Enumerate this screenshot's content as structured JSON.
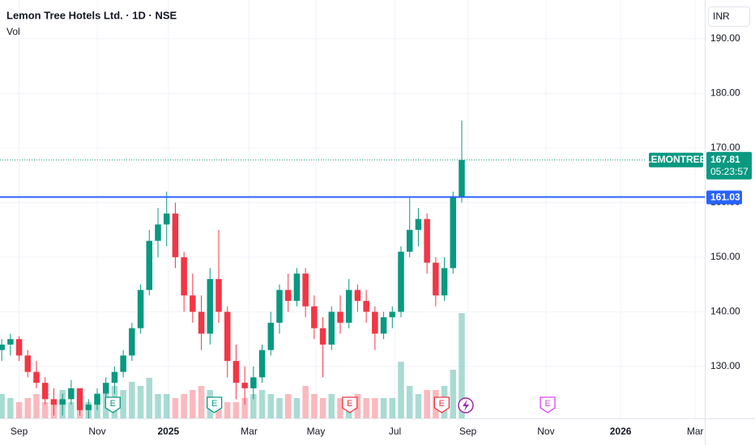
{
  "chart_data": {
    "type": "candlestick",
    "title": "Lemon Tree Hotels Ltd. · 1D · NSE",
    "volume_label": "Vol",
    "currency": "INR",
    "symbol": "LEMONTREE",
    "last_price": 167.81,
    "countdown": "05:23:57",
    "level": 161.03,
    "up_color": "#089981",
    "down_color": "#f23645",
    "level_color": "#2962ff",
    "x": [
      -2,
      -1,
      0,
      1,
      2,
      3,
      4,
      5,
      6,
      7,
      8,
      9,
      10,
      11,
      12,
      13,
      14,
      15,
      16,
      17,
      18,
      19,
      20,
      21,
      22,
      23,
      24,
      25,
      26,
      27,
      28,
      29,
      30,
      31,
      32,
      33,
      34,
      35,
      36,
      37,
      38,
      39,
      40,
      41,
      42,
      43,
      44,
      45,
      46,
      47,
      48,
      49,
      50,
      51
    ],
    "open": [
      133,
      134,
      135,
      132,
      129,
      127,
      124,
      123,
      124,
      126,
      122,
      123,
      125,
      127,
      129,
      132,
      137,
      144,
      153,
      156,
      158,
      150,
      143,
      140,
      136,
      146,
      140,
      131,
      127,
      126,
      128,
      133,
      138,
      144,
      142,
      147,
      141,
      137,
      134,
      140,
      138,
      144,
      142,
      140,
      136,
      139,
      140,
      151,
      155,
      157,
      149,
      143,
      148,
      161
    ],
    "high": [
      135,
      136,
      135.5,
      133,
      131,
      128,
      126,
      125,
      127.5,
      126,
      124,
      126,
      128,
      130,
      133,
      138,
      145,
      155,
      159,
      162,
      160,
      151,
      147,
      143,
      148,
      155,
      141,
      134,
      130,
      130,
      134,
      140,
      145,
      147,
      148,
      148,
      143,
      139,
      141,
      143,
      146,
      145,
      144,
      141,
      140,
      141,
      152,
      161,
      159,
      158,
      150,
      150,
      162,
      175
    ],
    "low": [
      131,
      132,
      131,
      128,
      126,
      123,
      121,
      121,
      123,
      121,
      120.5,
      122,
      123,
      125,
      128,
      131,
      136,
      143,
      150,
      152,
      148,
      140,
      138,
      133,
      134,
      138,
      128,
      124,
      123,
      124,
      127,
      132,
      136,
      140,
      141,
      139,
      135,
      128,
      133,
      136,
      137,
      140,
      138,
      133,
      135,
      137,
      139,
      150,
      152,
      147,
      141,
      142,
      147,
      160
    ],
    "close": [
      134,
      135,
      132,
      129,
      127,
      124,
      123,
      124,
      126,
      122,
      123,
      125,
      127,
      129,
      132,
      137,
      144,
      153,
      156,
      158,
      150,
      143,
      140,
      136,
      146,
      140,
      131,
      127,
      126,
      128,
      133,
      138,
      144,
      142,
      147,
      141,
      137,
      134,
      140,
      138,
      144,
      142,
      140,
      136,
      139,
      140,
      151,
      155,
      157,
      149,
      143,
      148,
      161,
      167.81
    ],
    "volume": [
      3,
      2.5,
      2,
      2.5,
      3,
      2,
      2,
      3.5,
      2,
      2.5,
      2,
      2.5,
      3,
      4,
      3.5,
      4.5,
      4,
      5,
      3,
      3,
      2.5,
      3,
      3.5,
      4,
      3.5,
      2.5,
      2,
      2,
      2.5,
      3,
      3.5,
      3,
      2.5,
      3,
      2.5,
      4,
      3,
      2.5,
      3,
      2.5,
      2.5,
      3,
      2.5,
      2.5,
      2.5,
      2.5,
      7,
      4,
      3,
      3.5,
      3.5,
      4,
      6,
      13
    ],
    "volume_lim": [
      0,
      20
    ],
    "xlim": [
      -2.2,
      79
    ],
    "xticks": [
      {
        "value": 0,
        "label": "Sep"
      },
      {
        "value": 9,
        "label": "Nov"
      },
      {
        "value": 17.2,
        "label": "2025"
      },
      {
        "value": 26.5,
        "label": "Mar"
      },
      {
        "value": 34.2,
        "label": "May"
      },
      {
        "value": 43.3,
        "label": "Jul"
      },
      {
        "value": 51.7,
        "label": "Sep"
      },
      {
        "value": 60.7,
        "label": "Nov"
      },
      {
        "value": 69.3,
        "label": "2026"
      },
      {
        "value": 77.9,
        "label": "Mar"
      }
    ],
    "ylim": [
      120.5,
      197.1
    ],
    "yticks": [
      {
        "value": 130,
        "label": "130.00"
      },
      {
        "value": 140,
        "label": "140.00"
      },
      {
        "value": 150,
        "label": "150.00"
      },
      {
        "value": 160,
        "label": "160.00"
      },
      {
        "value": 170,
        "label": "170.00"
      },
      {
        "value": 180,
        "label": "180.00"
      },
      {
        "value": 190,
        "label": "190.00"
      }
    ],
    "grid": true,
    "events": [
      {
        "x": 10.8,
        "label": "E",
        "color": "#089981"
      },
      {
        "x": 22.5,
        "label": "E",
        "color": "#089981"
      },
      {
        "x": 38.1,
        "label": "E",
        "color": "#f23645"
      },
      {
        "x": 48.7,
        "label": "E",
        "color": "#f23645"
      },
      {
        "x": 60.9,
        "label": "E",
        "color": "#e040fb"
      }
    ]
  }
}
